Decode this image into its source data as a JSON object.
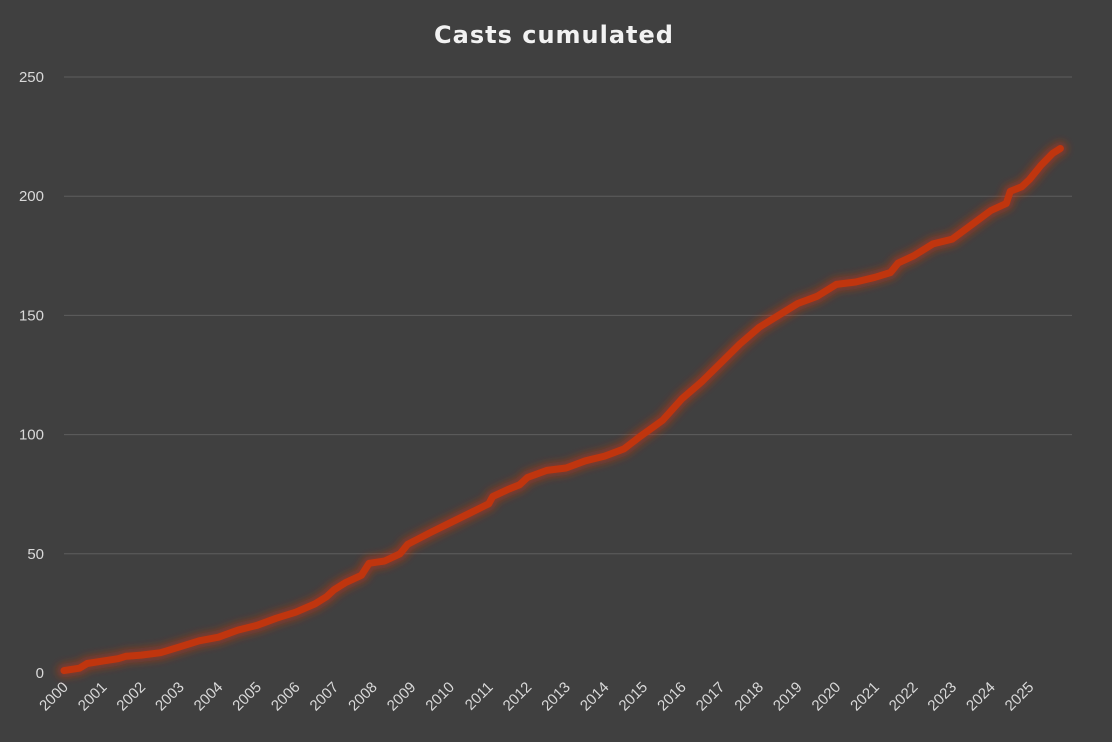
{
  "chart_data": {
    "type": "line",
    "title": "Casts cumulated",
    "xlabel": "",
    "ylabel": "",
    "xlim": [
      2000,
      2026.1
    ],
    "ylim": [
      0,
      250
    ],
    "y_ticks": [
      0,
      50,
      100,
      150,
      200,
      250
    ],
    "x_ticks": [
      "2000",
      "2001",
      "2002",
      "2003",
      "2004",
      "2005",
      "2006",
      "2007",
      "2008",
      "2009",
      "2010",
      "2011",
      "2012",
      "2013",
      "2014",
      "2015",
      "2016",
      "2017",
      "2018",
      "2019",
      "2020",
      "2021",
      "2022",
      "2023",
      "2024",
      "2025"
    ],
    "grid": true,
    "legend": "none",
    "series": [
      {
        "color": "#c0350e",
        "points": [
          [
            2000.0,
            1
          ],
          [
            2000.4,
            2
          ],
          [
            2000.6,
            4
          ],
          [
            2001.0,
            5
          ],
          [
            2001.4,
            6
          ],
          [
            2001.6,
            7
          ],
          [
            2002.0,
            7.5
          ],
          [
            2002.5,
            8.5
          ],
          [
            2003.0,
            11
          ],
          [
            2003.5,
            13.5
          ],
          [
            2004.0,
            15
          ],
          [
            2004.5,
            18
          ],
          [
            2005.0,
            20
          ],
          [
            2005.5,
            23
          ],
          [
            2006.0,
            25.5
          ],
          [
            2006.5,
            29
          ],
          [
            2006.8,
            32
          ],
          [
            2007.0,
            35
          ],
          [
            2007.3,
            38
          ],
          [
            2007.7,
            41
          ],
          [
            2007.9,
            46
          ],
          [
            2008.3,
            47
          ],
          [
            2008.7,
            50
          ],
          [
            2008.9,
            54
          ],
          [
            2009.5,
            59
          ],
          [
            2010.0,
            63
          ],
          [
            2010.5,
            67
          ],
          [
            2011.0,
            71
          ],
          [
            2011.1,
            74
          ],
          [
            2011.5,
            77
          ],
          [
            2011.8,
            79
          ],
          [
            2012.0,
            82
          ],
          [
            2012.5,
            85
          ],
          [
            2013.0,
            86
          ],
          [
            2013.5,
            89
          ],
          [
            2014.0,
            91
          ],
          [
            2014.5,
            94
          ],
          [
            2014.9,
            99
          ],
          [
            2015.5,
            106
          ],
          [
            2016.0,
            115
          ],
          [
            2016.5,
            122
          ],
          [
            2017.0,
            130
          ],
          [
            2017.5,
            138
          ],
          [
            2018.0,
            145
          ],
          [
            2018.5,
            150
          ],
          [
            2019.0,
            155
          ],
          [
            2019.5,
            158
          ],
          [
            2020.0,
            163
          ],
          [
            2020.5,
            164
          ],
          [
            2021.0,
            166
          ],
          [
            2021.4,
            168
          ],
          [
            2021.6,
            172
          ],
          [
            2022.0,
            175
          ],
          [
            2022.5,
            180
          ],
          [
            2023.0,
            182
          ],
          [
            2023.5,
            188
          ],
          [
            2024.0,
            194
          ],
          [
            2024.4,
            197
          ],
          [
            2024.5,
            202
          ],
          [
            2024.8,
            204
          ],
          [
            2025.0,
            207
          ],
          [
            2025.3,
            213
          ],
          [
            2025.6,
            218
          ],
          [
            2025.8,
            220
          ]
        ]
      }
    ]
  }
}
